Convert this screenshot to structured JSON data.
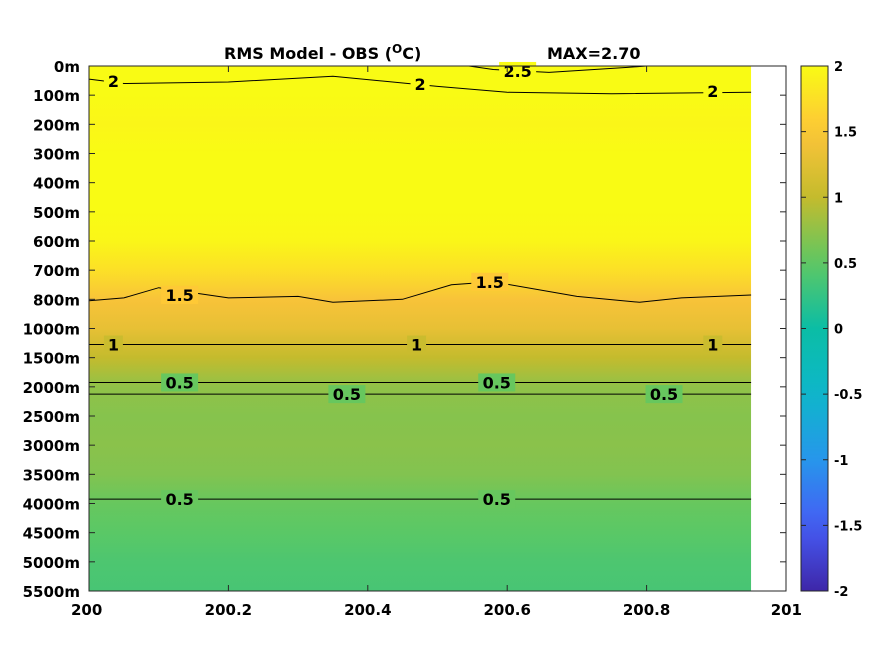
{
  "chart_data": {
    "type": "heatmap",
    "title": "RMS Model - OBS (",
    "title_sup": "O",
    "title_unit": "C)",
    "max_label": "MAX=2.70",
    "xlim": [
      200,
      201
    ],
    "x_ticks": [
      "200",
      "200.2",
      "200.4",
      "200.6",
      "200.8",
      "201"
    ],
    "x_data_end": 200.95,
    "y_ticks": [
      "0m",
      "100m",
      "200m",
      "300m",
      "400m",
      "500m",
      "600m",
      "700m",
      "800m",
      "1000m",
      "1500m",
      "2000m",
      "2500m",
      "3000m",
      "3500m",
      "4000m",
      "4500m",
      "5000m",
      "5500m"
    ],
    "colorbar": {
      "range": [
        -2,
        2
      ],
      "ticks": [
        "2",
        "1.5",
        "1",
        "0.5",
        "0",
        "-0.5",
        "-1",
        "-1.5",
        "-2"
      ]
    },
    "depth_profile": [
      {
        "level": 0,
        "value": 2.1
      },
      {
        "level": 1,
        "value": 2.0
      },
      {
        "level": 2,
        "value": 1.95
      },
      {
        "level": 3,
        "value": 2.0
      },
      {
        "level": 4,
        "value": 2.0
      },
      {
        "level": 5,
        "value": 2.0
      },
      {
        "level": 6,
        "value": 1.95
      },
      {
        "level": 7,
        "value": 1.75
      },
      {
        "level": 8,
        "value": 1.45
      },
      {
        "level": 9,
        "value": 1.3
      },
      {
        "level": 10,
        "value": 1.0
      },
      {
        "level": 11,
        "value": 0.75
      },
      {
        "level": 12,
        "value": 0.7
      },
      {
        "level": 13,
        "value": 0.72
      },
      {
        "level": 14,
        "value": 0.68
      },
      {
        "level": 15,
        "value": 0.55
      },
      {
        "level": 16,
        "value": 0.48
      },
      {
        "level": 17,
        "value": 0.4
      },
      {
        "level": 18,
        "value": 0.37
      }
    ],
    "contours": [
      {
        "level": "2.5",
        "points": [
          [
            200.545,
            0.0
          ],
          [
            200.58,
            0.12
          ],
          [
            200.66,
            0.22
          ],
          [
            200.77,
            0.05
          ],
          [
            200.8,
            0.0
          ]
        ],
        "labels": [
          [
            200.615,
            0.17
          ]
        ]
      },
      {
        "level": "2",
        "points": [
          [
            200.0,
            0.45
          ],
          [
            200.05,
            0.6
          ],
          [
            200.2,
            0.55
          ],
          [
            200.35,
            0.35
          ],
          [
            200.5,
            0.7
          ],
          [
            200.6,
            0.9
          ],
          [
            200.75,
            0.95
          ],
          [
            200.95,
            0.9
          ]
        ],
        "labels": [
          [
            200.035,
            0.52
          ],
          [
            200.475,
            0.62
          ],
          [
            200.895,
            0.86
          ]
        ]
      },
      {
        "level": "1.5",
        "points": [
          [
            200.0,
            8.05
          ],
          [
            200.05,
            7.95
          ],
          [
            200.1,
            7.6
          ],
          [
            200.2,
            7.95
          ],
          [
            200.3,
            7.9
          ],
          [
            200.35,
            8.1
          ],
          [
            200.45,
            8.0
          ],
          [
            200.52,
            7.5
          ],
          [
            200.58,
            7.4
          ],
          [
            200.7,
            7.9
          ],
          [
            200.79,
            8.1
          ],
          [
            200.85,
            7.95
          ],
          [
            200.95,
            7.85
          ]
        ],
        "labels": [
          [
            200.13,
            7.85
          ],
          [
            200.575,
            7.4
          ]
        ]
      },
      {
        "level": "1",
        "points": [
          [
            200.0,
            9.55
          ],
          [
            200.95,
            9.55
          ]
        ],
        "labels": [
          [
            200.035,
            9.55
          ],
          [
            200.47,
            9.55
          ],
          [
            200.895,
            9.55
          ]
        ]
      },
      {
        "level": "0.5",
        "points": [
          [
            200.0,
            10.85
          ],
          [
            200.95,
            10.85
          ]
        ],
        "labels": [
          [
            200.13,
            10.85
          ],
          [
            200.585,
            10.85
          ]
        ]
      },
      {
        "level": "0.5",
        "points": [
          [
            200.0,
            11.25
          ],
          [
            200.95,
            11.25
          ]
        ],
        "labels": [
          [
            200.37,
            11.25
          ],
          [
            200.825,
            11.25
          ]
        ]
      },
      {
        "level": "0.5",
        "points": [
          [
            200.0,
            14.85
          ],
          [
            200.95,
            14.85
          ]
        ],
        "labels": [
          [
            200.13,
            14.85
          ],
          [
            200.585,
            14.85
          ]
        ]
      }
    ]
  }
}
